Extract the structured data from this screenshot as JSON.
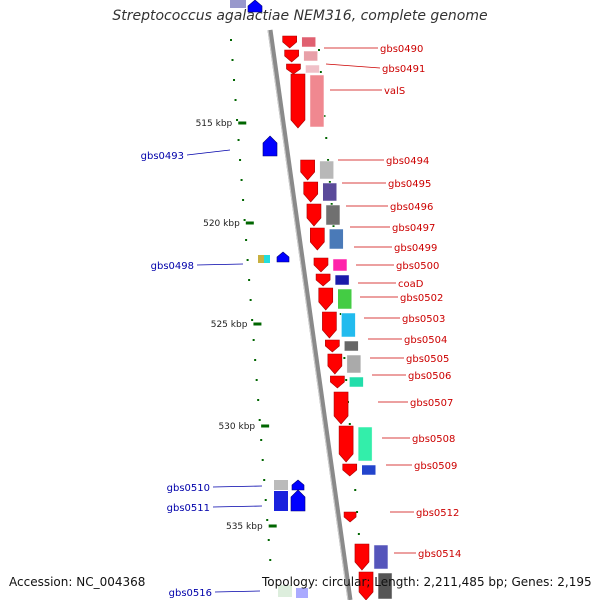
{
  "title": "Streptococcus agalactiae NEM316, complete genome",
  "footer": {
    "accession": "Accession: NC_004368",
    "topology": "Topology: circular; Length: 2,211,485 bp; Genes: 2,195"
  },
  "kbp_marks": [
    "515 kbp",
    "520 kbp",
    "525 kbp",
    "530 kbp",
    "535 kbp"
  ],
  "colors": {
    "forward": "#ff0000",
    "reverse": "#0000ff",
    "backbone": "#8a8a8a",
    "red_label": "#cc0000",
    "blue_label": "#0000aa",
    "tick": "#006600"
  },
  "right_labels": [
    "gbs0490",
    "gbs0491",
    "valS",
    "gbs0494",
    "gbs0495",
    "gbs0496",
    "gbs0497",
    "gbs0499",
    "gbs0500",
    "coaD",
    "gbs0502",
    "gbs0503",
    "gbs0504",
    "gbs0505",
    "gbs0506",
    "gbs0507",
    "gbs0508",
    "gbs0509",
    "gbs0512",
    "gbs0514"
  ],
  "left_labels": [
    "gbs0493",
    "gbs0498",
    "gbs0510",
    "gbs0511",
    "gbs0516"
  ]
}
